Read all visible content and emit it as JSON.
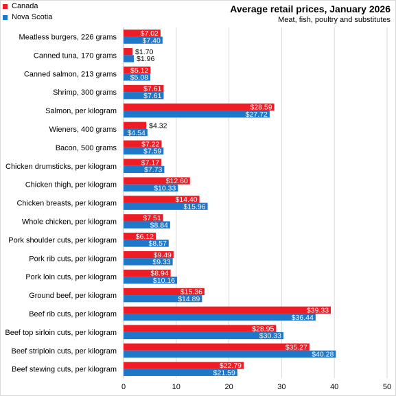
{
  "title": "Average retail prices, January 2026",
  "subtitle": "Meat,  fish, poultry and substitutes",
  "legend": [
    {
      "name": "Canada",
      "color": "#ee1c25"
    },
    {
      "name": "Nova Scotia",
      "color": "#1f77c9"
    }
  ],
  "chart_data": {
    "type": "bar",
    "orientation": "horizontal",
    "categories": [
      "Meatless burgers, 226 grams",
      "Canned tuna, 170 grams",
      "Canned salmon, 213 grams",
      "Shrimp, 300 grams",
      "Salmon, per kilogram",
      "Wieners, 400 grams",
      "Bacon, 500 grams",
      "Chicken drumsticks, per kilogram",
      "Chicken thigh, per kilogram",
      "Chicken breasts, per kilogram",
      "Whole chicken, per kilogram",
      "Pork shoulder cuts, per kilogram",
      "Pork rib cuts, per kilogram",
      "Pork loin cuts, per kilogram",
      "Ground beef, per kilogram",
      "Beef rib cuts, per kilogram",
      "Beef top sirloin cuts, per kilogram",
      "Beef striploin cuts, per kilogram",
      "Beef stewing cuts, per kilogram"
    ],
    "series": [
      {
        "name": "Canada",
        "color": "#ee1c25",
        "values": [
          7.02,
          1.7,
          5.12,
          7.61,
          28.59,
          4.32,
          7.22,
          7.17,
          12.6,
          14.4,
          7.51,
          6.12,
          9.49,
          8.94,
          15.36,
          39.33,
          28.95,
          35.27,
          22.79
        ],
        "labels": [
          "$7.02",
          "$1.70",
          "$5.12",
          "$7.61",
          "$28.59",
          "$4.32",
          "$7.22",
          "$7.17",
          "$12.60",
          "$14.40",
          "$7.51",
          "$6.12",
          "$9.49",
          "$8.94",
          "$15.36",
          "$39.33",
          "$28.95",
          "$35.27",
          "$22.79"
        ]
      },
      {
        "name": "Nova Scotia",
        "color": "#1f77c9",
        "values": [
          7.4,
          1.96,
          5.08,
          7.61,
          27.72,
          4.54,
          7.59,
          7.73,
          10.33,
          15.96,
          8.84,
          8.57,
          9.33,
          10.16,
          14.89,
          36.44,
          30.33,
          40.28,
          21.59
        ],
        "labels": [
          "$7.40",
          "$1.96",
          "$5.08",
          "$7.61",
          "$27.72",
          "$4.54",
          "$7.59",
          "$7.73",
          "$10.33",
          "$15.96",
          "$8.84",
          "$8.57",
          "$9.33",
          "$10.16",
          "$14.89",
          "$36.44",
          "$30.33",
          "$40.28",
          "$21.59"
        ]
      }
    ],
    "xlim": [
      0,
      50
    ],
    "xticks": [
      0,
      10,
      20,
      30,
      40,
      50
    ],
    "grid": true,
    "legend_position": "top-left"
  }
}
